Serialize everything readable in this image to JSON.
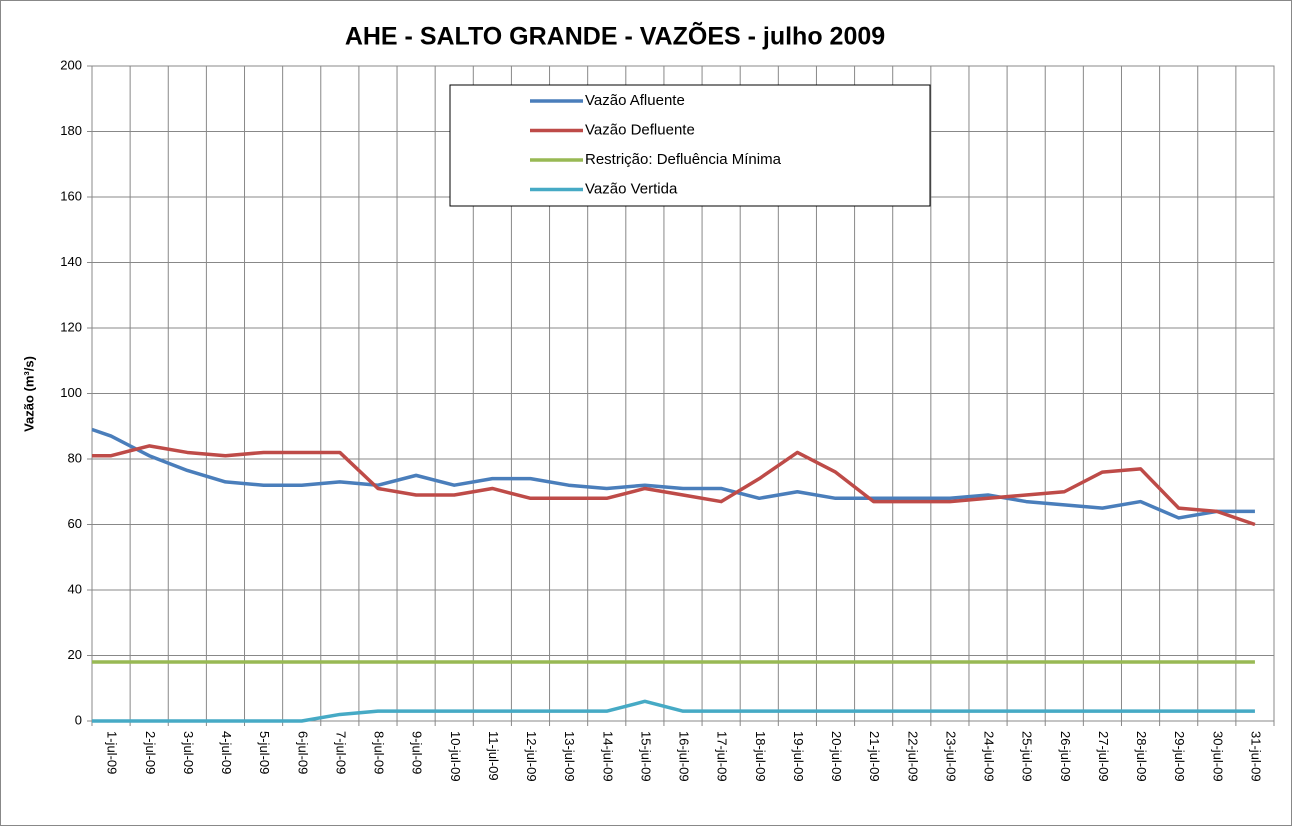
{
  "chart_data": {
    "type": "line",
    "title": "AHE - SALTO GRANDE - VAZÕES - julho 2009",
    "y_label": "Vazão (m³/s)",
    "categories": [
      null,
      "1-jul-09",
      "2-jul-09",
      "3-jul-09",
      "4-jul-09",
      "5-jul-09",
      "6-jul-09",
      "7-jul-09",
      "8-jul-09",
      "9-jul-09",
      "10-jul-09",
      "11-jul-09",
      "12-jul-09",
      "13-jul-09",
      "14-jul-09",
      "15-jul-09",
      "16-jul-09",
      "17-jul-09",
      "18-jul-09",
      "19-jul-09",
      "20-jul-09",
      "21-jul-09",
      "22-jul-09",
      "23-jul-09",
      "24-jul-09",
      "25-jul-09",
      "26-jul-09",
      "27-jul-09",
      "28-jul-09",
      "29-jul-09",
      "30-jul-09",
      "31-jul-09"
    ],
    "series": [
      {
        "name": "Vazão Afluente",
        "color": "#4a7ebb",
        "values": [
          89,
          87,
          81,
          76.5,
          73,
          72,
          72,
          73,
          72,
          75,
          72,
          74,
          74,
          72,
          71,
          72,
          71,
          71,
          68,
          70,
          68,
          68,
          68,
          68,
          69,
          67,
          66,
          65,
          67,
          62,
          64,
          64
        ]
      },
      {
        "name": "Vazão Defluente",
        "color": "#be4b48",
        "values": [
          81,
          81,
          84,
          82,
          81,
          82,
          82,
          82,
          71,
          69,
          69,
          71,
          68,
          68,
          68,
          71,
          69,
          67,
          74,
          82,
          76,
          67,
          67,
          67,
          68,
          69,
          70,
          76,
          77,
          65,
          64,
          60
        ]
      },
      {
        "name": "Restrição: Defluência Mínima",
        "color": "#98b954",
        "values": [
          18,
          18,
          18,
          18,
          18,
          18,
          18,
          18,
          18,
          18,
          18,
          18,
          18,
          18,
          18,
          18,
          18,
          18,
          18,
          18,
          18,
          18,
          18,
          18,
          18,
          18,
          18,
          18,
          18,
          18,
          18,
          18
        ]
      },
      {
        "name": "Vazão Vertida",
        "color": "#46aac5",
        "values": [
          0,
          0,
          0,
          0,
          0,
          0,
          0,
          2,
          3,
          3,
          3,
          3,
          3,
          3,
          3,
          6,
          3,
          3,
          3,
          3,
          3,
          3,
          3,
          3,
          3,
          3,
          3,
          3,
          3,
          3,
          3,
          3
        ]
      }
    ],
    "ylim": [
      0,
      200
    ],
    "yticks": [
      0,
      20,
      40,
      60,
      80,
      100,
      120,
      140,
      160,
      180,
      200
    ],
    "grid": true,
    "legend": "top"
  }
}
